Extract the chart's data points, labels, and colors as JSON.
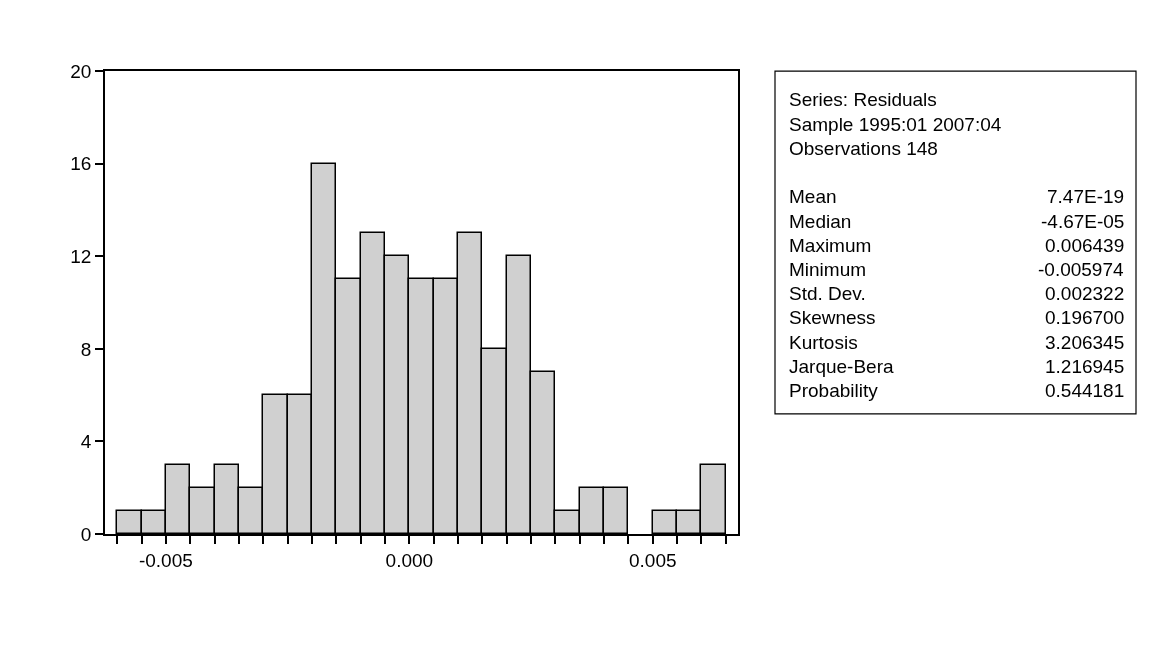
{
  "chart_data": {
    "type": "histogram",
    "bins": [
      -0.006,
      -0.0055,
      -0.005,
      -0.0045,
      -0.004,
      -0.0035,
      -0.003,
      -0.0025,
      -0.002,
      -0.0015,
      -0.001,
      -0.0005,
      0.0,
      0.0005,
      0.001,
      0.0015,
      0.002,
      0.0025,
      0.003,
      0.0035,
      0.004,
      0.0045,
      0.005,
      0.0055,
      0.006,
      0.0065
    ],
    "values": [
      1,
      1,
      3,
      2,
      3,
      2,
      6,
      6,
      16,
      11,
      13,
      12,
      11,
      11,
      13,
      8,
      12,
      7,
      1,
      2,
      2,
      0,
      1,
      1,
      3
    ],
    "color": "#d0d0d0",
    "xlim": [
      -0.00625,
      0.00675
    ],
    "xticks": [
      {
        "value": -0.006,
        "label": null
      },
      {
        "value": -0.0055,
        "label": null
      },
      {
        "value": -0.005,
        "label": "-0.005"
      },
      {
        "value": -0.0045,
        "label": null
      },
      {
        "value": -0.004,
        "label": null
      },
      {
        "value": -0.0035,
        "label": null
      },
      {
        "value": -0.003,
        "label": null
      },
      {
        "value": -0.0025,
        "label": null
      },
      {
        "value": -0.002,
        "label": null
      },
      {
        "value": -0.0015,
        "label": null
      },
      {
        "value": -0.001,
        "label": null
      },
      {
        "value": -0.0005,
        "label": null
      },
      {
        "value": 0.0,
        "label": "0.000"
      },
      {
        "value": 0.0005,
        "label": null
      },
      {
        "value": 0.001,
        "label": null
      },
      {
        "value": 0.0015,
        "label": null
      },
      {
        "value": 0.002,
        "label": null
      },
      {
        "value": 0.0025,
        "label": null
      },
      {
        "value": 0.003,
        "label": null
      },
      {
        "value": 0.0035,
        "label": null
      },
      {
        "value": 0.004,
        "label": null
      },
      {
        "value": 0.0045,
        "label": null
      },
      {
        "value": 0.005,
        "label": "0.005"
      },
      {
        "value": 0.0055,
        "label": null
      },
      {
        "value": 0.006,
        "label": null
      },
      {
        "value": 0.0065,
        "label": null
      }
    ],
    "ylim": [
      0,
      20
    ],
    "yticks": [
      0,
      4,
      8,
      12,
      16,
      20
    ],
    "annotations": [
      "Series: Residuals",
      "Sample 1995:01 2007:04",
      "Observations 148",
      "Mean\t7.47E-19",
      "Median\t-4.67E-05",
      "Maximum\t0.006439",
      "Minimum\t-0.005974",
      "Std. Dev.\t0.002322",
      "Skewness\t0.196700",
      "Kurtosis\t3.206345",
      "Jarque-Bera\t1.216945",
      "Probability\t0.544181"
    ]
  }
}
